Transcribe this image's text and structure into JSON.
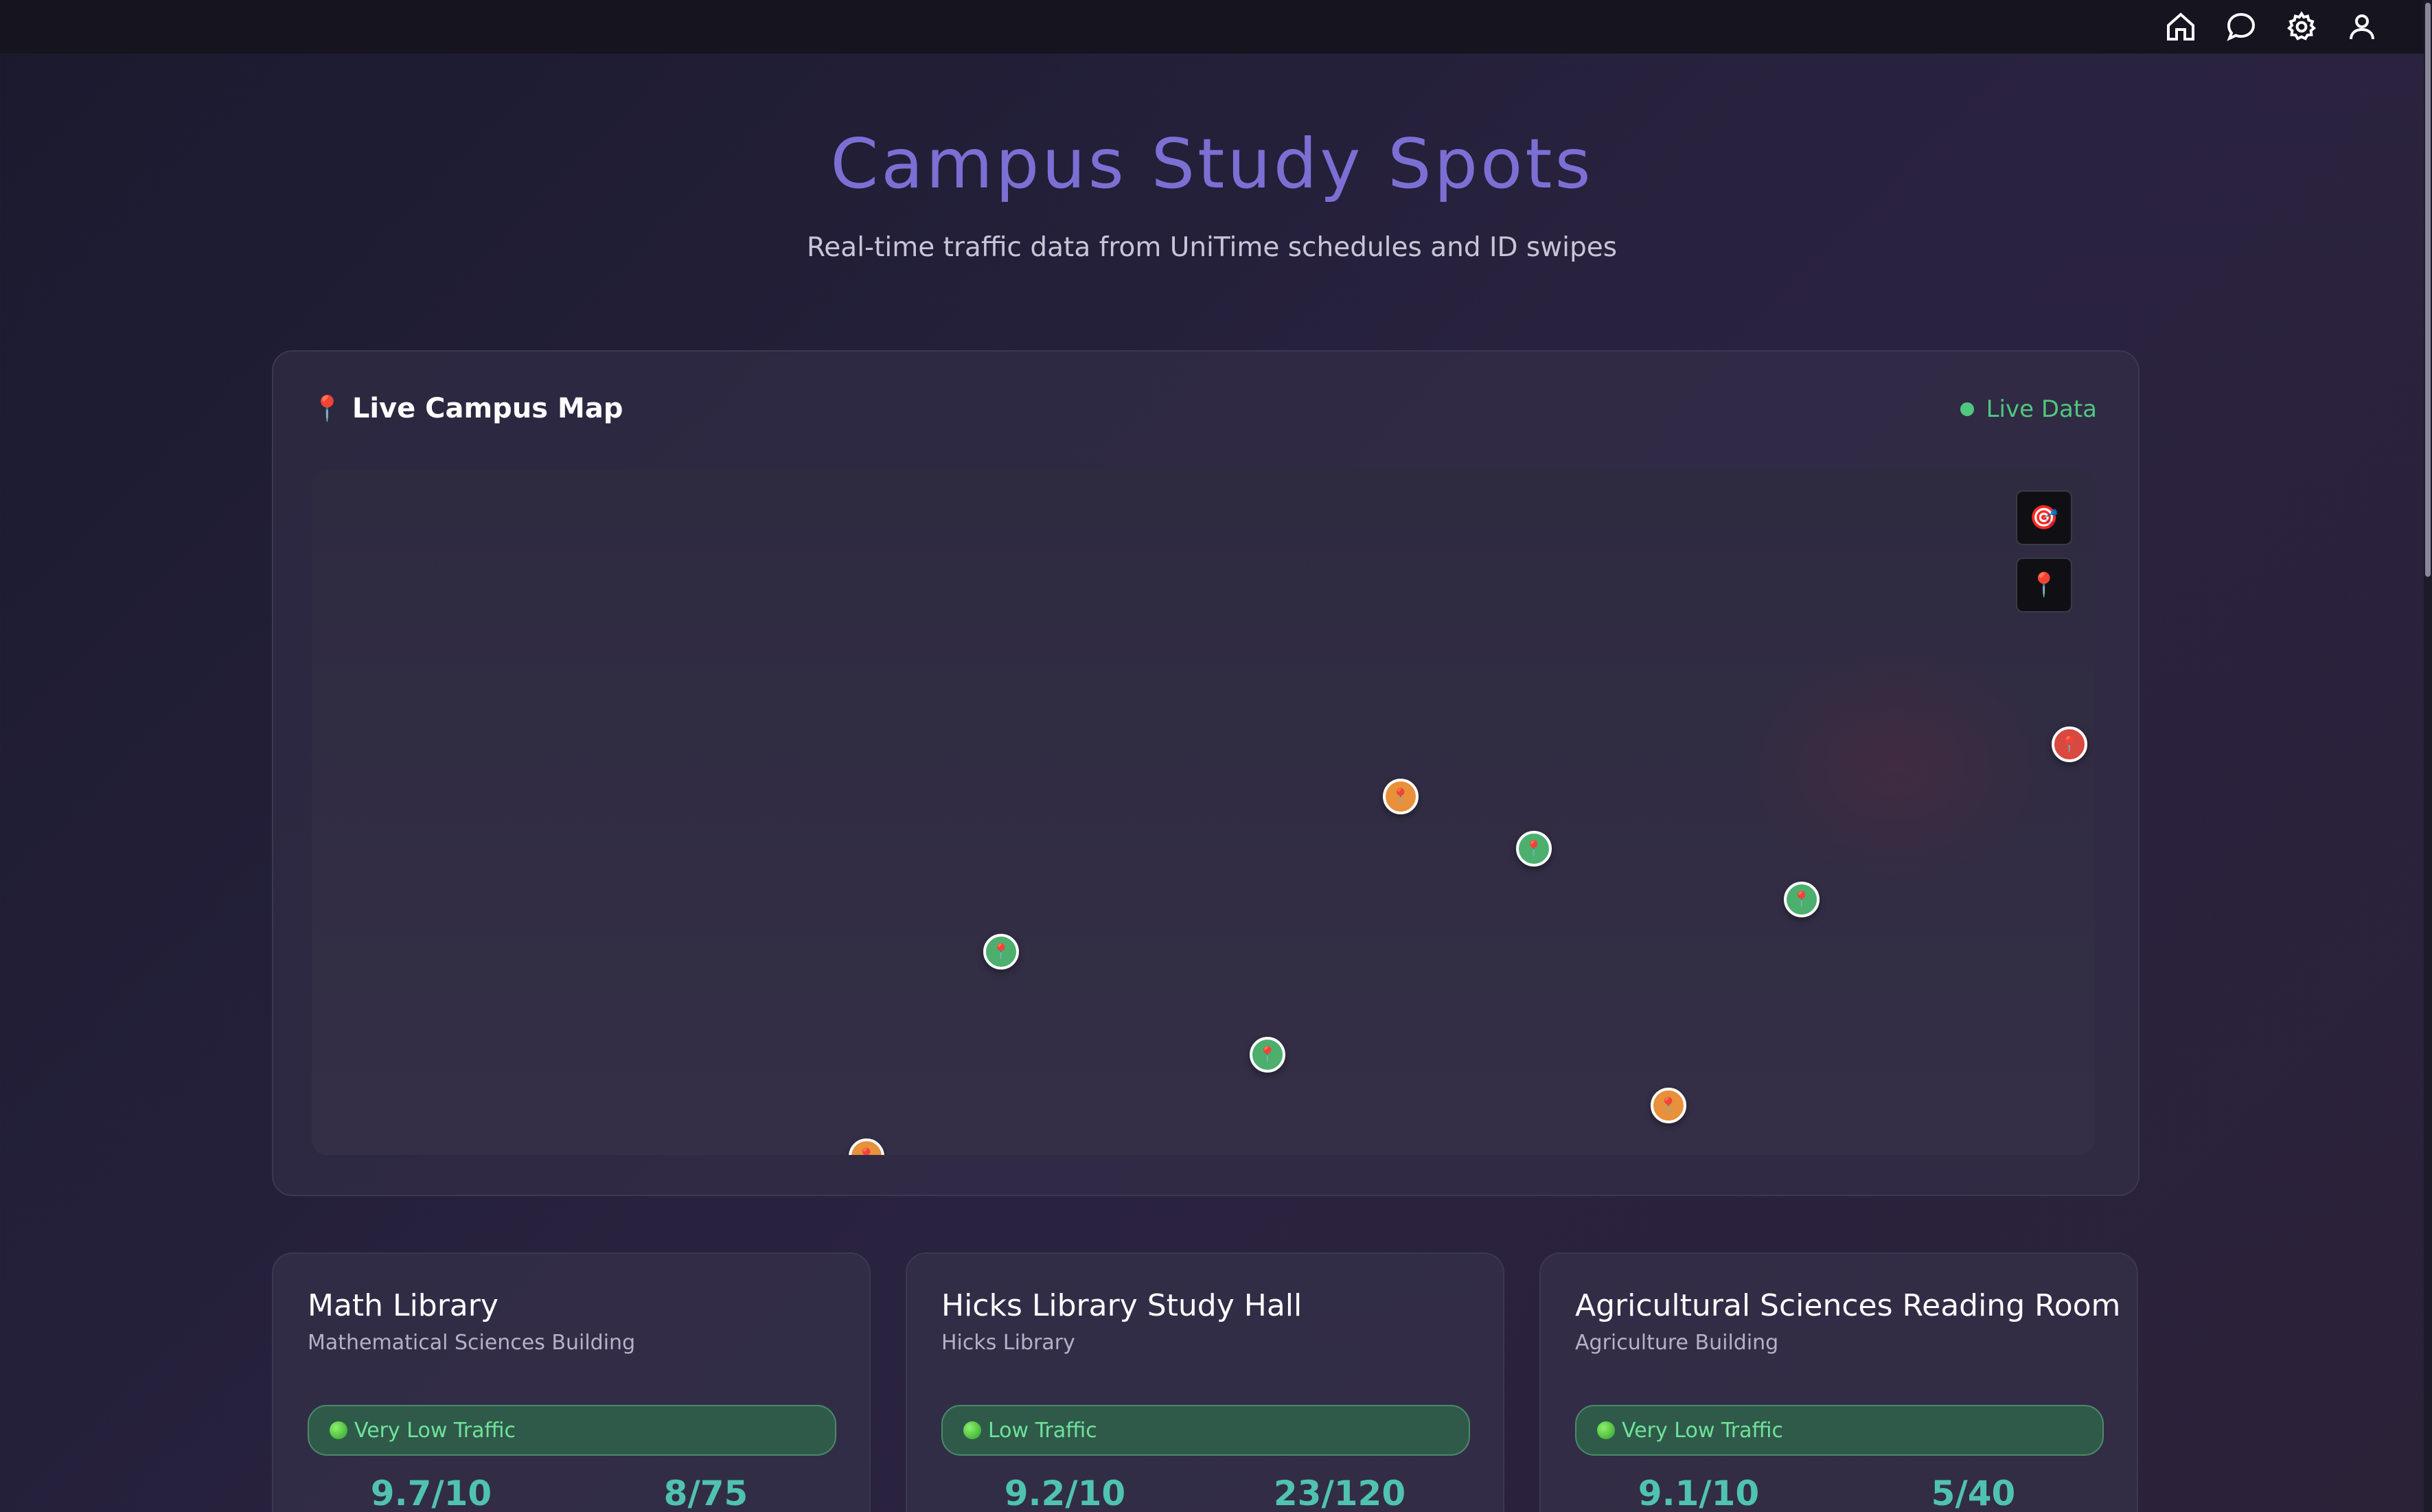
{
  "nav": {
    "icons": [
      "home-icon",
      "chat-icon",
      "settings-icon",
      "profile-icon"
    ]
  },
  "header": {
    "title": "Campus Study Spots",
    "subtitle": "Real-time traffic data from UniTime schedules and ID swipes"
  },
  "map": {
    "title": "Live Campus Map",
    "title_icon": "📍",
    "live_label": "Live Data",
    "controls": [
      {
        "icon": "🎯",
        "name": "locate-me"
      },
      {
        "icon": "📍",
        "name": "pin"
      }
    ],
    "marker_glyph": "📍",
    "markers": [
      {
        "status": "orange"
      },
      {
        "status": "green"
      },
      {
        "status": "green"
      },
      {
        "status": "red"
      },
      {
        "status": "green"
      },
      {
        "status": "green"
      },
      {
        "status": "orange"
      },
      {
        "status": "orange"
      }
    ]
  },
  "spots": [
    {
      "name": "Math Library",
      "building": "Mathematical Sciences Building",
      "traffic": "Very Low Traffic",
      "rating": "9.7/10",
      "occupancy": "8/75"
    },
    {
      "name": "Hicks Library Study Hall",
      "building": "Hicks Library",
      "traffic": "Low Traffic",
      "rating": "9.2/10",
      "occupancy": "23/120"
    },
    {
      "name": "Agricultural Sciences Reading Room",
      "building": "Agriculture Building",
      "traffic": "Very Low Traffic",
      "rating": "9.1/10",
      "occupancy": "5/40"
    }
  ],
  "colors": {
    "accent": "#7c6fd4",
    "live": "#4fc77f",
    "marker_green": "#4caf6e",
    "marker_orange": "#e8903a",
    "marker_red": "#d8493f",
    "stat": "#4fc3b0"
  }
}
